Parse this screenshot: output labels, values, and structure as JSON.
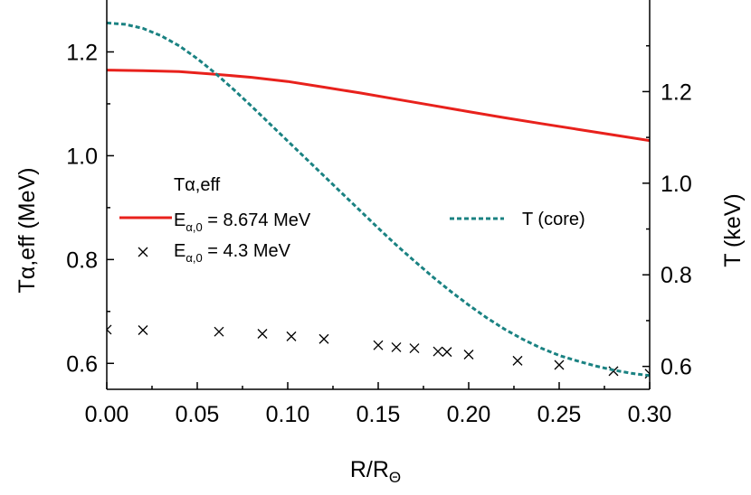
{
  "chart_data": {
    "type": "line",
    "xlabel": "R/R",
    "xlabel_sub": "Θ",
    "ylabel_left": "Tα,eff (MeV)",
    "ylabel_right": "T (keV)",
    "xlim": [
      0.0,
      0.3
    ],
    "ylim_left": [
      0.55,
      1.3
    ],
    "ylim_right": [
      0.55,
      1.4
    ],
    "x_ticks": [
      "0.00",
      "0.05",
      "0.10",
      "0.15",
      "0.20",
      "0.25",
      "0.30"
    ],
    "y_left_ticks": [
      "0.6",
      "0.8",
      "1.0",
      "1.2"
    ],
    "y_right_ticks": [
      "0.6",
      "0.8",
      "1.0",
      "1.2"
    ],
    "legend": {
      "title": "Tα,eff",
      "entries": [
        {
          "main": "E",
          "sub": "α,0",
          "rest": " = 8.674 MeV"
        },
        {
          "main": "E",
          "sub": "α,0",
          "rest": " = 4.3 MeV"
        }
      ],
      "right_entry": "T (core)"
    },
    "colors": {
      "red_line": "#e8211c",
      "teal_dashed": "#1a8282",
      "markers": "#000000"
    },
    "series": [
      {
        "type": "line",
        "axis": "left",
        "x": [
          0.0,
          0.02,
          0.04,
          0.06,
          0.08,
          0.1,
          0.12,
          0.14,
          0.16,
          0.18,
          0.2,
          0.22,
          0.24,
          0.26,
          0.28,
          0.3
        ],
        "y": [
          1.165,
          1.164,
          1.162,
          1.157,
          1.151,
          1.143,
          1.132,
          1.121,
          1.109,
          1.097,
          1.085,
          1.073,
          1.062,
          1.051,
          1.04,
          1.029
        ]
      },
      {
        "type": "scatter",
        "axis": "left",
        "x": [
          0.0,
          0.02,
          0.062,
          0.086,
          0.102,
          0.12,
          0.15,
          0.16,
          0.17,
          0.183,
          0.188,
          0.2,
          0.227,
          0.25,
          0.28,
          0.3
        ],
        "y": [
          0.665,
          0.664,
          0.661,
          0.657,
          0.652,
          0.647,
          0.635,
          0.631,
          0.629,
          0.623,
          0.622,
          0.617,
          0.605,
          0.597,
          0.585,
          0.58
        ]
      },
      {
        "type": "line",
        "axis": "right",
        "x": [
          0.0,
          0.01,
          0.02,
          0.03,
          0.04,
          0.05,
          0.06,
          0.07,
          0.08,
          0.09,
          0.1,
          0.11,
          0.12,
          0.13,
          0.14,
          0.15,
          0.16,
          0.17,
          0.18,
          0.19,
          0.2,
          0.21,
          0.22,
          0.23,
          0.24,
          0.25,
          0.26,
          0.27,
          0.28,
          0.29,
          0.3
        ],
        "y": [
          1.35,
          1.347,
          1.338,
          1.322,
          1.3,
          1.272,
          1.24,
          1.205,
          1.168,
          1.13,
          1.092,
          1.054,
          1.016,
          0.978,
          0.94,
          0.902,
          0.865,
          0.83,
          0.796,
          0.764,
          0.734,
          0.706,
          0.681,
          0.659,
          0.64,
          0.624,
          0.612,
          0.601,
          0.592,
          0.585,
          0.58
        ]
      }
    ]
  }
}
